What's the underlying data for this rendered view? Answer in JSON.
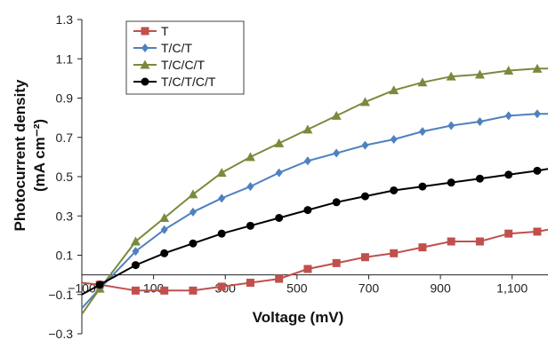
{
  "chart_data": {
    "type": "line",
    "xlabel": "Voltage (mV)",
    "ylabel_line1": "Photocurrent density",
    "ylabel_line2": "(mA cm⁻²)",
    "xlim": [
      -100,
      1200
    ],
    "ylim": [
      -0.3,
      1.3
    ],
    "x_ticks": [
      -100,
      100,
      300,
      500,
      700,
      900,
      1100
    ],
    "x_tick_labels": [
      "−100",
      "100",
      "300",
      "500",
      "700",
      "900",
      "1,100"
    ],
    "y_ticks": [
      1.3,
      1.1,
      0.9,
      0.7,
      0.5,
      0.3,
      0.1,
      -0.1,
      -0.3
    ],
    "y_tick_labels": [
      "1.3",
      "1.1",
      "0.9",
      "0.7",
      "0.5",
      "0.3",
      "0.1",
      "−0.1",
      "−0.3"
    ],
    "grid": false,
    "legend_position": "top-left",
    "series": [
      {
        "name": "T",
        "color": "#c0504d",
        "marker": "square",
        "x": [
          -100,
          -50,
          50,
          130,
          210,
          290,
          370,
          450,
          530,
          610,
          690,
          770,
          850,
          930,
          1010,
          1090,
          1170,
          1200
        ],
        "y": [
          -0.04,
          -0.05,
          -0.08,
          -0.08,
          -0.08,
          -0.06,
          -0.04,
          -0.02,
          0.03,
          0.06,
          0.09,
          0.11,
          0.14,
          0.17,
          0.17,
          0.21,
          0.22,
          0.23
        ]
      },
      {
        "name": "T/C/T",
        "color": "#4f81bd",
        "marker": "diamond",
        "x": [
          -100,
          -50,
          50,
          130,
          210,
          290,
          370,
          450,
          530,
          610,
          690,
          770,
          850,
          930,
          1010,
          1090,
          1170,
          1200
        ],
        "y": [
          -0.17,
          -0.07,
          0.12,
          0.23,
          0.32,
          0.39,
          0.45,
          0.52,
          0.58,
          0.62,
          0.66,
          0.69,
          0.73,
          0.76,
          0.78,
          0.81,
          0.82,
          0.82
        ]
      },
      {
        "name": "T/C/C/T",
        "color": "#7a8a3c",
        "marker": "triangle",
        "x": [
          -100,
          -50,
          50,
          130,
          210,
          290,
          370,
          450,
          530,
          610,
          690,
          770,
          850,
          930,
          1010,
          1090,
          1170,
          1200
        ],
        "y": [
          -0.2,
          -0.07,
          0.17,
          0.29,
          0.41,
          0.52,
          0.6,
          0.67,
          0.74,
          0.81,
          0.88,
          0.94,
          0.98,
          1.01,
          1.02,
          1.04,
          1.05,
          1.05
        ]
      },
      {
        "name": "T/C/T/C/T",
        "color": "#000000",
        "marker": "circle",
        "x": [
          -100,
          -50,
          50,
          130,
          210,
          290,
          370,
          450,
          530,
          610,
          690,
          770,
          850,
          930,
          1010,
          1090,
          1170,
          1200
        ],
        "y": [
          -0.1,
          -0.05,
          0.05,
          0.11,
          0.16,
          0.21,
          0.25,
          0.29,
          0.33,
          0.37,
          0.4,
          0.43,
          0.45,
          0.47,
          0.49,
          0.51,
          0.53,
          0.54
        ]
      }
    ]
  }
}
